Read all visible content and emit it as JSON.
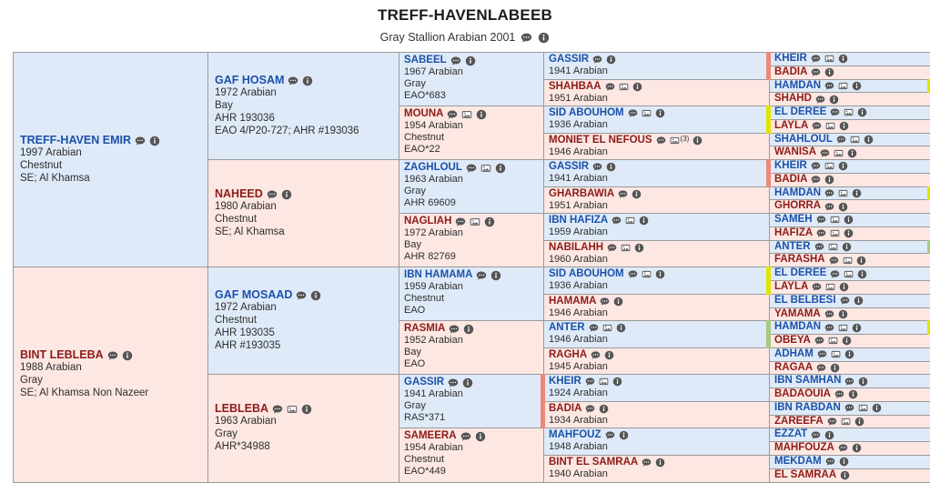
{
  "header": {
    "title": "TREFF-HAVENLABEEB",
    "subtitle": "Gray Stallion Arabian 2001",
    "subtitle_icons": [
      "comment",
      "info"
    ]
  },
  "colors": {
    "male_bg": "#dfeaf9",
    "female_bg": "#fce7e3",
    "male_link": "#1b51a8",
    "female_link": "#8e1b17",
    "border": "#9a9a9a",
    "markers": {
      "salmon": "#ee8878",
      "yellow": "#e3e300",
      "green": "#a8ca7e"
    }
  },
  "pedigree": {
    "generations": [
      {
        "span": 16,
        "cells": [
          {
            "name": "TREFF-HAVEN EMIR",
            "sex": "m",
            "icons": [
              "comment",
              "info"
            ],
            "details": [
              "1997 Arabian",
              "Chestnut",
              "SE; Al Khamsa"
            ]
          },
          {
            "name": "BINT LEBLEBA",
            "sex": "f",
            "icons": [
              "comment",
              "info"
            ],
            "details": [
              "1988 Arabian",
              "Gray",
              "SE; Al Khamsa Non Nazeer"
            ]
          }
        ]
      },
      {
        "span": 8,
        "cells": [
          {
            "name": "GAF HOSAM",
            "sex": "m",
            "icons": [
              "comment",
              "info"
            ],
            "details": [
              "1972 Arabian",
              "Bay",
              "AHR 193036",
              "EAO 4/P20-727; AHR #193036"
            ]
          },
          {
            "name": "NAHEED",
            "sex": "f",
            "icons": [
              "comment",
              "info"
            ],
            "details": [
              "1980 Arabian",
              "Chestnut",
              "SE; Al Khamsa"
            ]
          },
          {
            "name": "GAF MOSAAD",
            "sex": "m",
            "icons": [
              "comment",
              "info"
            ],
            "details": [
              "1972 Arabian",
              "Chestnut",
              "AHR 193035",
              "AHR #193035"
            ]
          },
          {
            "name": "LEBLEBA",
            "sex": "f",
            "icons": [
              "comment",
              "image",
              "info"
            ],
            "details": [
              "1963 Arabian",
              "Gray",
              "AHR*34988"
            ]
          }
        ]
      },
      {
        "span": 4,
        "cells": [
          {
            "name": "SABEEL",
            "sex": "m",
            "icons": [
              "comment",
              "info"
            ],
            "details": [
              "1967 Arabian",
              "Gray",
              "EAO*683"
            ]
          },
          {
            "name": "MOUNA",
            "sex": "f",
            "icons": [
              "comment",
              "image",
              "info"
            ],
            "details": [
              "1954 Arabian",
              "Chestnut",
              "EAO*22"
            ]
          },
          {
            "name": "ZAGHLOUL",
            "sex": "m",
            "icons": [
              "comment",
              "image",
              "info"
            ],
            "details": [
              "1963 Arabian",
              "Gray",
              "AHR 69609"
            ]
          },
          {
            "name": "NAGLIAH",
            "sex": "f",
            "icons": [
              "comment",
              "image",
              "info"
            ],
            "details": [
              "1972 Arabian",
              "Bay",
              "AHR 82769"
            ]
          },
          {
            "name": "IBN HAMAMA",
            "sex": "m",
            "icons": [
              "comment",
              "info"
            ],
            "details": [
              "1959 Arabian",
              "Chestnut",
              "EAO"
            ]
          },
          {
            "name": "RASMIA",
            "sex": "f",
            "icons": [
              "comment",
              "info"
            ],
            "details": [
              "1952 Arabian",
              "Bay",
              "EAO"
            ]
          },
          {
            "name": "GASSIR",
            "sex": "m",
            "icons": [
              "comment",
              "info"
            ],
            "details": [
              "1941 Arabian",
              "Gray",
              "RAS*371"
            ],
            "marker": "salmon"
          },
          {
            "name": "SAMEERA",
            "sex": "f",
            "icons": [
              "comment",
              "info"
            ],
            "details": [
              "1954 Arabian",
              "Chestnut",
              "EAO*449"
            ]
          }
        ]
      },
      {
        "span": 2,
        "cells": [
          {
            "name": "GASSIR",
            "sex": "m",
            "icons": [
              "comment",
              "info"
            ],
            "details": [
              "1941 Arabian"
            ],
            "marker": "salmon"
          },
          {
            "name": "SHAHBAA",
            "sex": "f",
            "icons": [
              "comment",
              "image",
              "info"
            ],
            "details": [
              "1951 Arabian"
            ]
          },
          {
            "name": "SID ABOUHOM",
            "sex": "m",
            "icons": [
              "comment",
              "image",
              "info"
            ],
            "details": [
              "1936 Arabian"
            ],
            "marker": "yellow"
          },
          {
            "name": "MONIET EL NEFOUS",
            "sex": "f",
            "icons": [
              "comment",
              "image",
              "info"
            ],
            "img_note": "(3)",
            "details": [
              "1946 Arabian"
            ]
          },
          {
            "name": "GASSIR",
            "sex": "m",
            "icons": [
              "comment",
              "info"
            ],
            "details": [
              "1941 Arabian"
            ],
            "marker": "salmon"
          },
          {
            "name": "GHARBAWIA",
            "sex": "f",
            "icons": [
              "comment",
              "info"
            ],
            "details": [
              "1951 Arabian"
            ]
          },
          {
            "name": "IBN HAFIZA",
            "sex": "m",
            "icons": [
              "comment",
              "image",
              "info"
            ],
            "details": [
              "1959 Arabian"
            ]
          },
          {
            "name": "NABILAHH",
            "sex": "f",
            "icons": [
              "comment",
              "image",
              "info"
            ],
            "details": [
              "1960 Arabian"
            ]
          },
          {
            "name": "SID ABOUHOM",
            "sex": "m",
            "icons": [
              "comment",
              "image",
              "info"
            ],
            "details": [
              "1936 Arabian"
            ],
            "marker": "yellow"
          },
          {
            "name": "HAMAMA",
            "sex": "f",
            "icons": [
              "comment",
              "info"
            ],
            "details": [
              "1946 Arabian"
            ]
          },
          {
            "name": "ANTER",
            "sex": "m",
            "icons": [
              "comment",
              "image",
              "info"
            ],
            "details": [
              "1946 Arabian"
            ],
            "marker": "green"
          },
          {
            "name": "RAGHA",
            "sex": "f",
            "icons": [
              "comment",
              "info"
            ],
            "details": [
              "1945 Arabian"
            ]
          },
          {
            "name": "KHEIR",
            "sex": "m",
            "icons": [
              "comment",
              "image",
              "info"
            ],
            "details": [
              "1924 Arabian"
            ]
          },
          {
            "name": "BADIA",
            "sex": "f",
            "icons": [
              "comment",
              "info"
            ],
            "details": [
              "1934 Arabian"
            ]
          },
          {
            "name": "MAHFOUZ",
            "sex": "m",
            "icons": [
              "comment",
              "info"
            ],
            "details": [
              "1948 Arabian"
            ]
          },
          {
            "name": "BINT EL SAMRAA",
            "sex": "f",
            "icons": [
              "comment",
              "info"
            ],
            "details": [
              "1940 Arabian"
            ]
          }
        ]
      },
      {
        "span": 1,
        "cells": [
          {
            "name": "KHEIR",
            "sex": "m",
            "icons": [
              "comment",
              "image",
              "info"
            ]
          },
          {
            "name": "BADIA",
            "sex": "f",
            "icons": [
              "comment",
              "info"
            ]
          },
          {
            "name": "HAMDAN",
            "sex": "m",
            "icons": [
              "comment",
              "image",
              "info"
            ],
            "marker": "yellow"
          },
          {
            "name": "SHAHD",
            "sex": "f",
            "icons": [
              "comment",
              "info"
            ]
          },
          {
            "name": "EL DEREE",
            "sex": "m",
            "icons": [
              "comment",
              "image",
              "info"
            ]
          },
          {
            "name": "LAYLA",
            "sex": "f",
            "icons": [
              "comment",
              "image",
              "info"
            ]
          },
          {
            "name": "SHAHLOUL",
            "sex": "m",
            "icons": [
              "comment",
              "image",
              "info"
            ]
          },
          {
            "name": "WANISA",
            "sex": "f",
            "icons": [
              "comment",
              "image",
              "info"
            ]
          },
          {
            "name": "KHEIR",
            "sex": "m",
            "icons": [
              "comment",
              "image",
              "info"
            ]
          },
          {
            "name": "BADIA",
            "sex": "f",
            "icons": [
              "comment",
              "info"
            ]
          },
          {
            "name": "HAMDAN",
            "sex": "m",
            "icons": [
              "comment",
              "image",
              "info"
            ],
            "marker": "yellow"
          },
          {
            "name": "GHORRA",
            "sex": "f",
            "icons": [
              "comment",
              "info"
            ]
          },
          {
            "name": "SAMEH",
            "sex": "m",
            "icons": [
              "comment",
              "image",
              "info"
            ]
          },
          {
            "name": "HAFIZA",
            "sex": "f",
            "icons": [
              "comment",
              "image",
              "info"
            ]
          },
          {
            "name": "ANTER",
            "sex": "m",
            "icons": [
              "comment",
              "image",
              "info"
            ],
            "marker": "green"
          },
          {
            "name": "FARASHA",
            "sex": "f",
            "icons": [
              "comment",
              "image",
              "info"
            ]
          },
          {
            "name": "EL DEREE",
            "sex": "m",
            "icons": [
              "comment",
              "image",
              "info"
            ]
          },
          {
            "name": "LAYLA",
            "sex": "f",
            "icons": [
              "comment",
              "image",
              "info"
            ]
          },
          {
            "name": "EL BELBESI",
            "sex": "m",
            "icons": [
              "comment",
              "info"
            ]
          },
          {
            "name": "YAMAMA",
            "sex": "f",
            "icons": [
              "comment",
              "info"
            ]
          },
          {
            "name": "HAMDAN",
            "sex": "m",
            "icons": [
              "comment",
              "image",
              "info"
            ],
            "marker": "yellow"
          },
          {
            "name": "OBEYA",
            "sex": "f",
            "icons": [
              "comment",
              "image",
              "info"
            ]
          },
          {
            "name": "ADHAM",
            "sex": "m",
            "icons": [
              "comment",
              "image",
              "info"
            ]
          },
          {
            "name": "RAGAA",
            "sex": "f",
            "icons": [
              "comment",
              "info"
            ]
          },
          {
            "name": "IBN SAMHAN",
            "sex": "m",
            "icons": [
              "comment",
              "info"
            ]
          },
          {
            "name": "BADAOUIA",
            "sex": "f",
            "icons": [
              "comment",
              "info"
            ]
          },
          {
            "name": "IBN RABDAN",
            "sex": "m",
            "icons": [
              "comment",
              "image",
              "info"
            ]
          },
          {
            "name": "ZAREEFA",
            "sex": "f",
            "icons": [
              "comment",
              "image",
              "info"
            ]
          },
          {
            "name": "EZZAT",
            "sex": "m",
            "icons": [
              "comment",
              "info"
            ]
          },
          {
            "name": "MAHFOUZA",
            "sex": "f",
            "icons": [
              "comment",
              "info"
            ]
          },
          {
            "name": "MEKDAM",
            "sex": "m",
            "icons": [
              "comment",
              "info"
            ]
          },
          {
            "name": "EL SAMRAA",
            "sex": "f",
            "icons": [
              "info"
            ]
          }
        ]
      }
    ]
  }
}
